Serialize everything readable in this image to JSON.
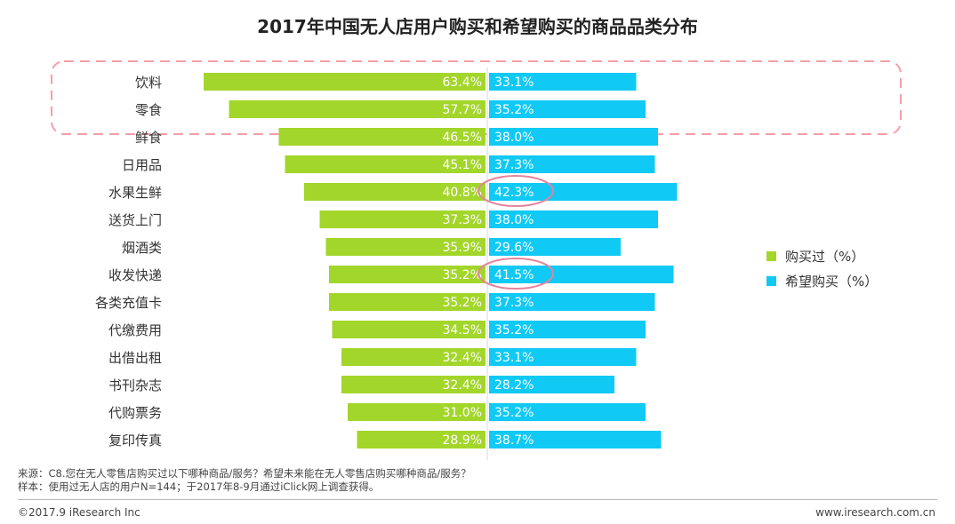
{
  "title": "2017年中国无人店用户购买和希望购买的商品品类分布",
  "legend": {
    "bought": "购买过（%）",
    "want": "希望购买（%）"
  },
  "colors": {
    "bought": "#a3d62a",
    "want": "#11c9f5",
    "highlight": "#f2a0a8",
    "circle": "#e5839b",
    "axis": "#d8d8d8"
  },
  "chart_data": {
    "type": "bar",
    "orientation": "horizontal-diverging",
    "xlim": [
      0,
      70
    ],
    "categories": [
      "饮料",
      "零食",
      "鲜食",
      "日用品",
      "水果生鲜",
      "送货上门",
      "烟酒类",
      "收发快递",
      "各类充值卡",
      "代缴费用",
      "出借出租",
      "书刊杂志",
      "代购票务",
      "复印传真"
    ],
    "series": [
      {
        "name": "购买过（%）",
        "values": [
          63.4,
          57.7,
          46.5,
          45.1,
          40.8,
          37.3,
          35.9,
          35.2,
          35.2,
          34.5,
          32.4,
          32.4,
          31.0,
          28.9
        ]
      },
      {
        "name": "希望购买（%）",
        "values": [
          33.1,
          35.2,
          38.0,
          37.3,
          42.3,
          38.0,
          29.6,
          41.5,
          37.3,
          35.2,
          33.1,
          28.2,
          35.2,
          38.7
        ]
      }
    ],
    "highlighted_rows": [
      0,
      1
    ],
    "circled_values": [
      {
        "category": "水果生鲜",
        "series": "希望购买（%）"
      },
      {
        "category": "收发快递",
        "series": "希望购买（%）"
      }
    ]
  },
  "source": {
    "line1": "来源：C8.您在无人零售店购买过以下哪种商品/服务？希望未来能在无人零售店购买哪种商品/服务？",
    "line2": "样本：使用过无人店的用户N=144；于2017年8-9月通过iClick网上调查获得。"
  },
  "footer": {
    "copyright": "©2017.9 iResearch Inc",
    "website": "www.iresearch.com.cn"
  }
}
